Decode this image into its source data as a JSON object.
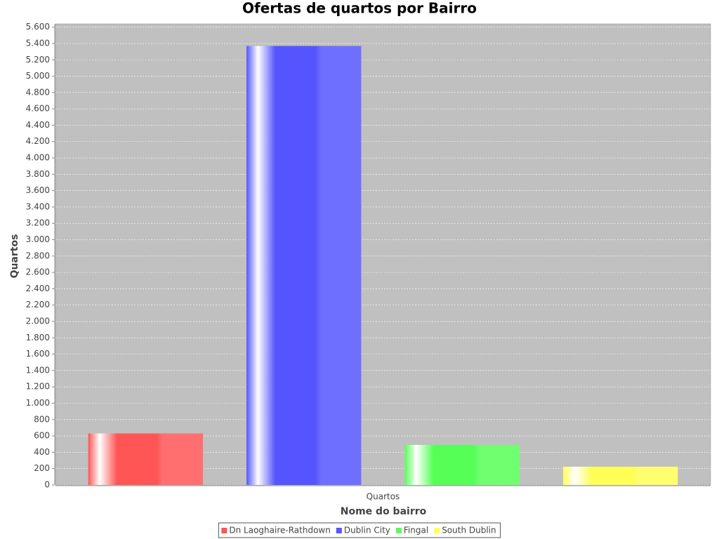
{
  "chart_data": {
    "type": "bar",
    "title": "Ofertas de quartos por Bairro",
    "x_label": "Nome do bairro",
    "y_label": "Quartos",
    "categories": [
      "Quartos"
    ],
    "series": [
      {
        "name": "Dn Laoghaire-Rathdown",
        "color": "#ff5555",
        "values": [
          630
        ]
      },
      {
        "name": "Dublin City",
        "color": "#5555ff",
        "values": [
          5370
        ]
      },
      {
        "name": "Fingal",
        "color": "#55ff55",
        "values": [
          490
        ]
      },
      {
        "name": "South Dublin",
        "color": "#ffff55",
        "values": [
          223
        ]
      }
    ],
    "ylim": [
      0,
      5640
    ],
    "yticks": [
      0,
      200,
      400,
      600,
      800,
      {
        "value": 1000,
        "label": "1.000"
      },
      {
        "value": 1200,
        "label": "1.200"
      },
      {
        "value": 1400,
        "label": "1.400"
      },
      {
        "value": 1600,
        "label": "1.600"
      },
      {
        "value": 1800,
        "label": "1.800"
      },
      {
        "value": 2000,
        "label": "2.000"
      },
      {
        "value": 2200,
        "label": "2.200"
      },
      {
        "value": 2400,
        "label": "2.400"
      },
      {
        "value": 2600,
        "label": "2.600"
      },
      {
        "value": 2800,
        "label": "2.800"
      },
      {
        "value": 3000,
        "label": "3.000"
      },
      {
        "value": 3200,
        "label": "3.200"
      },
      {
        "value": 3400,
        "label": "3.400"
      },
      {
        "value": 3600,
        "label": "3.600"
      },
      {
        "value": 3800,
        "label": "3.800"
      },
      {
        "value": 4000,
        "label": "4.000"
      },
      {
        "value": 4200,
        "label": "4.200"
      },
      {
        "value": 4400,
        "label": "4.400"
      },
      {
        "value": 4600,
        "label": "4.600"
      },
      {
        "value": 4800,
        "label": "4.800"
      },
      {
        "value": 5000,
        "label": "5.000"
      },
      {
        "value": 5200,
        "label": "5.200"
      },
      {
        "value": 5400,
        "label": "5.400"
      },
      {
        "value": 5600,
        "label": "5.600"
      }
    ],
    "grid": true,
    "plot_background": "#c0c0c0",
    "legend_position": "bottom"
  }
}
